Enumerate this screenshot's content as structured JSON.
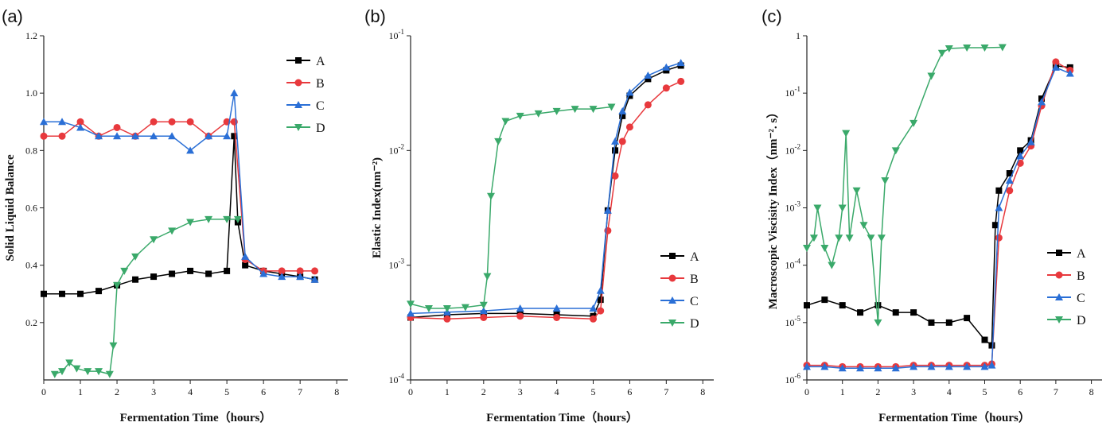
{
  "chart_data": [
    {
      "panel_label": "(a)",
      "type": "line",
      "xlabel": "Fermentation Time（hours）",
      "ylabel": "Solid Liquid Balance",
      "xlim": [
        0,
        8.3
      ],
      "ylim": [
        0,
        1.2
      ],
      "yscale": "linear",
      "xticks": [
        "0",
        "1",
        "2",
        "3",
        "4",
        "5",
        "6",
        "7",
        "8"
      ],
      "yticks": [
        "0.2",
        "0.4",
        "0.6",
        "0.8",
        "1.0",
        "1.2"
      ],
      "legend_position": "top-right",
      "series": [
        {
          "name": "A",
          "color": "#000000",
          "marker": "square",
          "x": [
            0,
            0.5,
            1,
            1.5,
            2,
            2.5,
            3,
            3.5,
            4,
            4.5,
            5,
            5.2,
            5.3,
            5.5,
            6,
            6.5,
            7,
            7.4
          ],
          "y": [
            0.3,
            0.3,
            0.3,
            0.31,
            0.33,
            0.35,
            0.36,
            0.37,
            0.38,
            0.37,
            0.38,
            0.85,
            0.55,
            0.4,
            0.38,
            0.37,
            0.36,
            0.35
          ]
        },
        {
          "name": "B",
          "color": "#e8393d",
          "marker": "circle",
          "x": [
            0,
            0.5,
            1,
            1.5,
            2,
            2.5,
            3,
            3.5,
            4,
            4.5,
            5,
            5.2,
            5.5,
            6,
            6.5,
            7,
            7.4
          ],
          "y": [
            0.85,
            0.85,
            0.9,
            0.85,
            0.88,
            0.85,
            0.9,
            0.9,
            0.9,
            0.85,
            0.9,
            0.9,
            0.42,
            0.38,
            0.38,
            0.38,
            0.38
          ]
        },
        {
          "name": "C",
          "color": "#2a6fd6",
          "marker": "triangle-up",
          "x": [
            0,
            0.5,
            1,
            1.5,
            2,
            2.5,
            3,
            3.5,
            4,
            4.5,
            5,
            5.2,
            5.5,
            6,
            6.5,
            7,
            7.4
          ],
          "y": [
            0.9,
            0.9,
            0.88,
            0.85,
            0.85,
            0.85,
            0.85,
            0.85,
            0.8,
            0.85,
            0.85,
            1.0,
            0.43,
            0.37,
            0.36,
            0.36,
            0.35
          ]
        },
        {
          "name": "D",
          "color": "#3aa96a",
          "marker": "triangle-down",
          "x": [
            0.3,
            0.5,
            0.7,
            0.9,
            1.2,
            1.5,
            1.8,
            1.9,
            2.0,
            2.2,
            2.5,
            3,
            3.5,
            4,
            4.5,
            5,
            5.3
          ],
          "y": [
            0.02,
            0.03,
            0.06,
            0.04,
            0.03,
            0.03,
            0.02,
            0.12,
            0.33,
            0.38,
            0.43,
            0.49,
            0.52,
            0.55,
            0.56,
            0.56,
            0.56
          ]
        }
      ]
    },
    {
      "panel_label": "(b)",
      "type": "line",
      "xlabel": "Fermentation Time（hours）",
      "ylabel": "Elastic Index(nm⁻²)",
      "xlim": [
        0,
        8.3
      ],
      "ylim": [
        0.0001,
        0.1
      ],
      "yscale": "log",
      "xticks": [
        "0",
        "1",
        "2",
        "3",
        "4",
        "5",
        "6",
        "7",
        "8"
      ],
      "ytick_values": [
        0.0001,
        0.001,
        0.01,
        0.1
      ],
      "yticks": [
        "10⁻⁴",
        "10⁻³",
        "10⁻²",
        "10⁻¹"
      ],
      "legend_position": "lower-right",
      "series": [
        {
          "name": "A",
          "color": "#000000",
          "marker": "square",
          "x": [
            0,
            1,
            2,
            3,
            4,
            5,
            5.2,
            5.4,
            5.6,
            5.8,
            6,
            6.5,
            7,
            7.4
          ],
          "y": [
            0.00035,
            0.00037,
            0.00038,
            0.00038,
            0.00037,
            0.00036,
            0.0005,
            0.003,
            0.01,
            0.02,
            0.03,
            0.042,
            0.05,
            0.055
          ]
        },
        {
          "name": "B",
          "color": "#e8393d",
          "marker": "circle",
          "x": [
            0,
            1,
            2,
            3,
            4,
            5,
            5.2,
            5.4,
            5.6,
            5.8,
            6,
            6.5,
            7,
            7.4
          ],
          "y": [
            0.00035,
            0.00034,
            0.00035,
            0.00036,
            0.00035,
            0.00034,
            0.0004,
            0.002,
            0.006,
            0.012,
            0.016,
            0.025,
            0.035,
            0.04
          ]
        },
        {
          "name": "C",
          "color": "#2a6fd6",
          "marker": "triangle-up",
          "x": [
            0,
            1,
            2,
            3,
            4,
            5,
            5.2,
            5.4,
            5.6,
            5.8,
            6,
            6.5,
            7,
            7.4
          ],
          "y": [
            0.00038,
            0.00039,
            0.0004,
            0.00042,
            0.00042,
            0.00042,
            0.0006,
            0.003,
            0.012,
            0.022,
            0.032,
            0.045,
            0.053,
            0.058
          ]
        },
        {
          "name": "D",
          "color": "#3aa96a",
          "marker": "triangle-down",
          "x": [
            0,
            0.5,
            1,
            1.5,
            2,
            2.1,
            2.2,
            2.4,
            2.6,
            3,
            3.5,
            4,
            4.5,
            5,
            5.5
          ],
          "y": [
            0.00046,
            0.00042,
            0.00042,
            0.00043,
            0.00045,
            0.0008,
            0.004,
            0.012,
            0.018,
            0.02,
            0.021,
            0.022,
            0.023,
            0.023,
            0.024
          ]
        }
      ]
    },
    {
      "panel_label": "(c)",
      "type": "line",
      "xlabel": "Fermentation Time（hours）",
      "ylabel": "Macroscopic Viscisity Index（nm⁻². s）",
      "xlim": [
        0,
        8.3
      ],
      "ylim": [
        1e-06,
        1
      ],
      "yscale": "log",
      "xticks": [
        "0",
        "1",
        "2",
        "3",
        "4",
        "5",
        "6",
        "7",
        "8"
      ],
      "ytick_values": [
        1e-06,
        1e-05,
        0.0001,
        0.001,
        0.01,
        0.1,
        1
      ],
      "yticks": [
        "10⁻⁶",
        "10⁻⁵",
        "10⁻⁴",
        "10⁻³",
        "10⁻²",
        "10⁻¹",
        "1"
      ],
      "legend_position": "lower-right",
      "series": [
        {
          "name": "A",
          "color": "#000000",
          "marker": "square",
          "x": [
            0,
            0.5,
            1,
            1.5,
            2,
            2.5,
            3,
            3.5,
            4,
            4.5,
            5,
            5.2,
            5.3,
            5.4,
            5.7,
            6,
            6.3,
            6.6,
            7,
            7.4
          ],
          "y": [
            2e-05,
            2.5e-05,
            2e-05,
            1.5e-05,
            2e-05,
            1.5e-05,
            1.5e-05,
            1e-05,
            1e-05,
            1.2e-05,
            5e-06,
            4e-06,
            0.0005,
            0.002,
            0.004,
            0.01,
            0.015,
            0.08,
            0.3,
            0.28
          ]
        },
        {
          "name": "B",
          "color": "#e8393d",
          "marker": "circle",
          "x": [
            0,
            0.5,
            1,
            1.5,
            2,
            2.5,
            3,
            3.5,
            4,
            4.5,
            5,
            5.2,
            5.4,
            5.7,
            6,
            6.3,
            6.6,
            7,
            7.4
          ],
          "y": [
            1.8e-06,
            1.8e-06,
            1.7e-06,
            1.7e-06,
            1.7e-06,
            1.7e-06,
            1.8e-06,
            1.8e-06,
            1.8e-06,
            1.8e-06,
            1.8e-06,
            1.9e-06,
            0.0003,
            0.002,
            0.006,
            0.012,
            0.06,
            0.35,
            0.25
          ]
        },
        {
          "name": "C",
          "color": "#2a6fd6",
          "marker": "triangle-up",
          "x": [
            0,
            0.5,
            1,
            1.5,
            2,
            2.5,
            3,
            3.5,
            4,
            4.5,
            5,
            5.2,
            5.4,
            5.7,
            6,
            6.3,
            6.6,
            7,
            7.4
          ],
          "y": [
            1.7e-06,
            1.7e-06,
            1.6e-06,
            1.6e-06,
            1.6e-06,
            1.6e-06,
            1.7e-06,
            1.7e-06,
            1.7e-06,
            1.7e-06,
            1.7e-06,
            1.8e-06,
            0.001,
            0.003,
            0.008,
            0.014,
            0.07,
            0.28,
            0.22
          ]
        },
        {
          "name": "D",
          "color": "#3aa96a",
          "marker": "triangle-down",
          "x": [
            0,
            0.2,
            0.3,
            0.5,
            0.7,
            0.9,
            1.0,
            1.1,
            1.2,
            1.4,
            1.6,
            1.8,
            2.0,
            2.1,
            2.2,
            2.5,
            3,
            3.5,
            3.8,
            4,
            4.5,
            5,
            5.5
          ],
          "y": [
            0.0002,
            0.0003,
            0.001,
            0.0002,
            0.0001,
            0.0003,
            0.001,
            0.02,
            0.0003,
            0.002,
            0.0005,
            0.0003,
            1e-05,
            0.0003,
            0.003,
            0.01,
            0.03,
            0.2,
            0.5,
            0.6,
            0.62,
            0.62,
            0.63
          ]
        }
      ]
    }
  ]
}
